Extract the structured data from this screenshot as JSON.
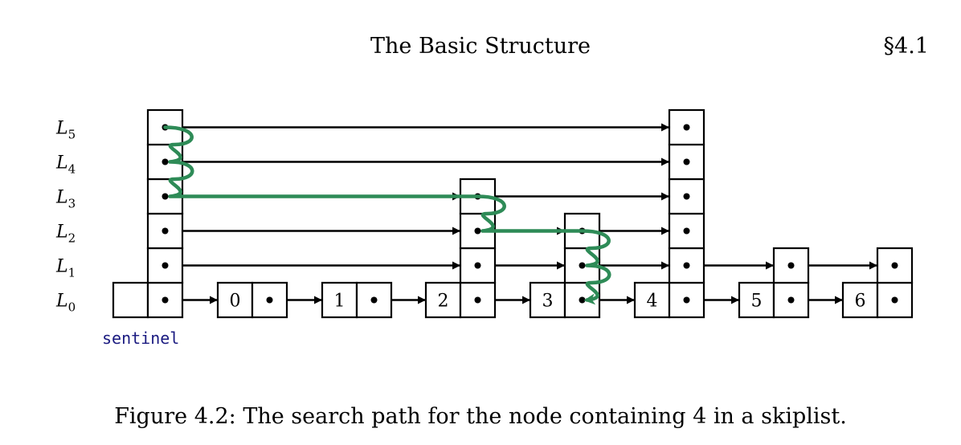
{
  "header": {
    "title": "The Basic Structure",
    "section": "§4.1"
  },
  "caption": "Figure 4.2: The search path for the node containing 4 in a skiplist.",
  "diagram": {
    "levels": [
      "L0",
      "L1",
      "L2",
      "L3",
      "L4",
      "L5"
    ],
    "sentinel_label": "sentinel",
    "sentinel_height": 6,
    "nodes": [
      {
        "value": "0",
        "height": 1
      },
      {
        "value": "1",
        "height": 1
      },
      {
        "value": "2",
        "height": 4
      },
      {
        "value": "3",
        "height": 3
      },
      {
        "value": "4",
        "height": 6
      },
      {
        "value": "5",
        "height": 2
      },
      {
        "value": "6",
        "height": 2
      }
    ],
    "search_target": "4",
    "colors": {
      "path": "#2e8b57",
      "sentinel_label": "#1a1a80",
      "line": "#000000"
    }
  }
}
